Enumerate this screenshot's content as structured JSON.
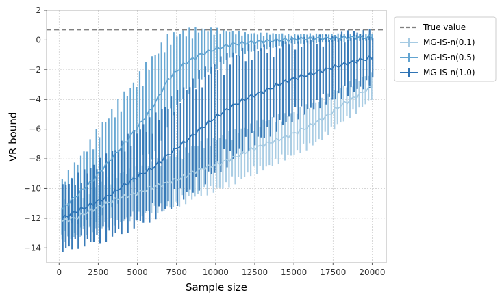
{
  "chart_data": {
    "type": "line",
    "title": "",
    "xlabel": "Sample size",
    "ylabel": "VR bound",
    "xlim": [
      -800,
      20900
    ],
    "ylim": [
      -15,
      2
    ],
    "xticks": [
      0,
      2500,
      5000,
      7500,
      10000,
      12500,
      15000,
      17500,
      20000
    ],
    "xtick_labels": [
      "0",
      "2500",
      "5000",
      "7500",
      "10000",
      "12500",
      "15000",
      "17500",
      "20000"
    ],
    "yticks": [
      2,
      0,
      -2,
      -4,
      -6,
      -8,
      -10,
      -12,
      -14
    ],
    "ytick_labels": [
      "2",
      "0",
      "−2",
      "−4",
      "−6",
      "−8",
      "−10",
      "−12",
      "−14"
    ],
    "grid": true,
    "legend_position": "outside-top-right",
    "reference_line": {
      "name": "True value",
      "y": 0.7,
      "color": "#808080"
    },
    "x": [
      200,
      1000,
      2000,
      3000,
      4000,
      5000,
      6000,
      7000,
      8000,
      9000,
      10000,
      11000,
      12000,
      13000,
      14000,
      15000,
      16000,
      17000,
      18000,
      19000,
      20000
    ],
    "series": [
      {
        "name": "MG-IS-n(0.1)",
        "color": "#a6cbe3",
        "values": [
          -12.2,
          -12.0,
          -11.5,
          -11.0,
          -10.6,
          -10.3,
          -9.9,
          -9.6,
          -9.2,
          -8.7,
          -8.4,
          -8.0,
          -7.5,
          -7.1,
          -6.7,
          -6.3,
          -5.8,
          -5.2,
          -4.4,
          -3.8,
          -3.1
        ],
        "errors": [
          1.2,
          1.2,
          1.3,
          1.4,
          1.5,
          1.5,
          1.5,
          1.6,
          1.6,
          1.6,
          1.6,
          1.6,
          1.5,
          1.5,
          1.4,
          1.3,
          1.3,
          1.2,
          1.1,
          1.0,
          0.8
        ]
      },
      {
        "name": "MG-IS-n(0.5)",
        "color": "#62a4d1",
        "values": [
          -11.4,
          -10.6,
          -9.6,
          -8.4,
          -7.2,
          -5.9,
          -4.5,
          -2.6,
          -1.6,
          -1.0,
          -0.6,
          -0.3,
          -0.2,
          -0.1,
          0.0,
          0.05,
          0.1,
          0.12,
          0.15,
          0.17,
          0.18
        ],
        "errors": [
          1.8,
          2.0,
          2.5,
          2.8,
          3.0,
          3.0,
          3.1,
          2.6,
          2.0,
          1.6,
          1.2,
          0.8,
          0.6,
          0.5,
          0.4,
          0.3,
          0.3,
          0.25,
          0.25,
          0.2,
          0.2
        ]
      },
      {
        "name": "MG-IS-n(1.0)",
        "color": "#2f74b5",
        "values": [
          -12.0,
          -11.6,
          -11.1,
          -10.6,
          -9.9,
          -9.2,
          -8.6,
          -7.7,
          -6.9,
          -6.0,
          -5.2,
          -4.5,
          -3.9,
          -3.5,
          -3.0,
          -2.6,
          -2.3,
          -2.0,
          -1.7,
          -1.4,
          -1.2
        ],
        "errors": [
          2.0,
          2.1,
          2.3,
          2.5,
          2.7,
          2.9,
          3.0,
          3.2,
          3.3,
          3.4,
          3.3,
          3.2,
          3.0,
          2.8,
          2.6,
          2.4,
          2.2,
          2.0,
          1.9,
          1.8,
          1.6
        ]
      }
    ]
  }
}
